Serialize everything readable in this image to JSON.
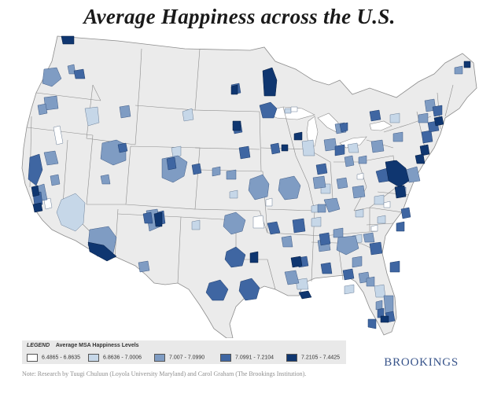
{
  "title": "Average Happiness across the U.S.",
  "legend": {
    "label": "LEGEND",
    "title": "Average MSA Happiness Levels",
    "classes": [
      {
        "range": "6.4865 - 6.8635",
        "color": "#ffffff"
      },
      {
        "range": "6.8636 - 7.0006",
        "color": "#c6d7e8"
      },
      {
        "range": "7.007 - 7.0990",
        "color": "#7f9cc3"
      },
      {
        "range": "7.0991 - 7.2104",
        "color": "#3f66a2"
      },
      {
        "range": "7.2105 - 7.4425",
        "color": "#0f3670"
      }
    ]
  },
  "brand": "BROOKINGS",
  "note": "Note: Research by Tuugi Chuluun (Loyola University Maryland) and Carol Graham (The Brookings Institution).",
  "colors": {
    "land": "#ebebeb",
    "border": "#8c8c8c",
    "water": "#ffffff"
  }
}
